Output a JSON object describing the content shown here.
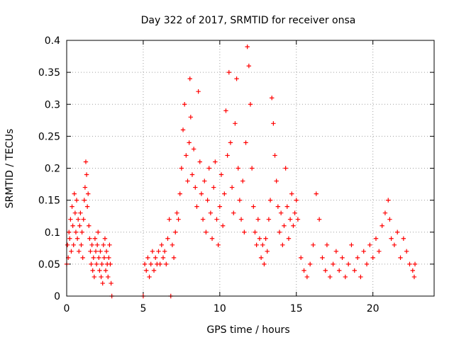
{
  "chart_data": {
    "type": "scatter",
    "title": "Day 322 of 2017, SRMTID for receiver onsa",
    "xlabel": "GPS time / hours",
    "ylabel": "SRMTID / TECUs",
    "xlim": [
      0,
      24
    ],
    "ylim": [
      0,
      0.4
    ],
    "xticks": [
      0,
      5,
      10,
      15,
      20
    ],
    "xtick_labels": [
      "0",
      "5",
      "10",
      "15",
      "20"
    ],
    "yticks": [
      0,
      0.05,
      0.1,
      0.15,
      0.2,
      0.25,
      0.3,
      0.35,
      0.4
    ],
    "ytick_labels": [
      "0",
      "0.05",
      "0.1",
      "0.15",
      "0.2",
      "0.25",
      "0.3",
      "0.35",
      "0.4"
    ],
    "grid": true,
    "marker": "+",
    "color": "#ff0000",
    "series": [
      {
        "name": "SRMTID",
        "points": [
          [
            0.0,
            0.05
          ],
          [
            0.05,
            0.08
          ],
          [
            0.1,
            0.06
          ],
          [
            0.15,
            0.1
          ],
          [
            0.2,
            0.09
          ],
          [
            0.25,
            0.12
          ],
          [
            0.3,
            0.07
          ],
          [
            0.35,
            0.14
          ],
          [
            0.4,
            0.11
          ],
          [
            0.45,
            0.08
          ],
          [
            0.5,
            0.16
          ],
          [
            0.55,
            0.13
          ],
          [
            0.6,
            0.1
          ],
          [
            0.65,
            0.15
          ],
          [
            0.7,
            0.09
          ],
          [
            0.75,
            0.12
          ],
          [
            0.8,
            0.07
          ],
          [
            0.85,
            0.11
          ],
          [
            0.9,
            0.13
          ],
          [
            0.95,
            0.08
          ],
          [
            1.0,
            0.1
          ],
          [
            1.05,
            0.06
          ],
          [
            1.1,
            0.12
          ],
          [
            1.15,
            0.15
          ],
          [
            1.2,
            0.17
          ],
          [
            1.25,
            0.21
          ],
          [
            1.3,
            0.19
          ],
          [
            1.35,
            0.14
          ],
          [
            1.4,
            0.16
          ],
          [
            1.45,
            0.11
          ],
          [
            1.5,
            0.09
          ],
          [
            1.55,
            0.07
          ],
          [
            1.6,
            0.05
          ],
          [
            1.65,
            0.08
          ],
          [
            1.7,
            0.04
          ],
          [
            1.75,
            0.06
          ],
          [
            1.8,
            0.03
          ],
          [
            1.85,
            0.09
          ],
          [
            1.9,
            0.07
          ],
          [
            1.95,
            0.05
          ],
          [
            2.0,
            0.08
          ],
          [
            2.05,
            0.1
          ],
          [
            2.1,
            0.06
          ],
          [
            2.15,
            0.04
          ],
          [
            2.2,
            0.07
          ],
          [
            2.25,
            0.03
          ],
          [
            2.3,
            0.05
          ],
          [
            2.35,
            0.02
          ],
          [
            2.4,
            0.08
          ],
          [
            2.45,
            0.06
          ],
          [
            2.5,
            0.09
          ],
          [
            2.55,
            0.04
          ],
          [
            2.6,
            0.07
          ],
          [
            2.65,
            0.05
          ],
          [
            2.7,
            0.03
          ],
          [
            2.75,
            0.06
          ],
          [
            2.8,
            0.08
          ],
          [
            2.85,
            0.05
          ],
          [
            2.9,
            0.02
          ],
          [
            2.95,
            0.0
          ],
          [
            5.0,
            0.0
          ],
          [
            5.1,
            0.05
          ],
          [
            5.2,
            0.04
          ],
          [
            5.3,
            0.06
          ],
          [
            5.4,
            0.03
          ],
          [
            5.5,
            0.05
          ],
          [
            5.6,
            0.07
          ],
          [
            5.7,
            0.04
          ],
          [
            5.8,
            0.06
          ],
          [
            5.9,
            0.05
          ],
          [
            6.0,
            0.07
          ],
          [
            6.1,
            0.05
          ],
          [
            6.2,
            0.08
          ],
          [
            6.3,
            0.06
          ],
          [
            6.4,
            0.07
          ],
          [
            6.5,
            0.05
          ],
          [
            6.6,
            0.09
          ],
          [
            6.7,
            0.12
          ],
          [
            6.8,
            0.0
          ],
          [
            6.9,
            0.08
          ],
          [
            7.0,
            0.06
          ],
          [
            7.1,
            0.1
          ],
          [
            7.2,
            0.13
          ],
          [
            7.3,
            0.12
          ],
          [
            7.4,
            0.16
          ],
          [
            7.5,
            0.2
          ],
          [
            7.6,
            0.26
          ],
          [
            7.7,
            0.3
          ],
          [
            7.8,
            0.22
          ],
          [
            7.9,
            0.18
          ],
          [
            8.0,
            0.24
          ],
          [
            8.05,
            0.34
          ],
          [
            8.1,
            0.28
          ],
          [
            8.2,
            0.19
          ],
          [
            8.3,
            0.23
          ],
          [
            8.4,
            0.17
          ],
          [
            8.5,
            0.14
          ],
          [
            8.6,
            0.32
          ],
          [
            8.7,
            0.21
          ],
          [
            8.8,
            0.16
          ],
          [
            8.9,
            0.12
          ],
          [
            9.0,
            0.18
          ],
          [
            9.1,
            0.1
          ],
          [
            9.2,
            0.15
          ],
          [
            9.3,
            0.2
          ],
          [
            9.4,
            0.13
          ],
          [
            9.5,
            0.09
          ],
          [
            9.6,
            0.17
          ],
          [
            9.7,
            0.21
          ],
          [
            9.8,
            0.12
          ],
          [
            9.9,
            0.08
          ],
          [
            10.0,
            0.14
          ],
          [
            10.1,
            0.19
          ],
          [
            10.2,
            0.11
          ],
          [
            10.3,
            0.16
          ],
          [
            10.4,
            0.29
          ],
          [
            10.5,
            0.22
          ],
          [
            10.6,
            0.35
          ],
          [
            10.7,
            0.24
          ],
          [
            10.8,
            0.17
          ],
          [
            10.9,
            0.13
          ],
          [
            11.0,
            0.27
          ],
          [
            11.1,
            0.34
          ],
          [
            11.2,
            0.2
          ],
          [
            11.3,
            0.15
          ],
          [
            11.4,
            0.12
          ],
          [
            11.5,
            0.18
          ],
          [
            11.6,
            0.1
          ],
          [
            11.7,
            0.24
          ],
          [
            11.8,
            0.39
          ],
          [
            11.9,
            0.36
          ],
          [
            12.0,
            0.3
          ],
          [
            12.1,
            0.2
          ],
          [
            12.2,
            0.14
          ],
          [
            12.3,
            0.1
          ],
          [
            12.4,
            0.08
          ],
          [
            12.5,
            0.12
          ],
          [
            12.6,
            0.09
          ],
          [
            12.7,
            0.06
          ],
          [
            12.8,
            0.08
          ],
          [
            12.9,
            0.05
          ],
          [
            13.0,
            0.09
          ],
          [
            13.1,
            0.07
          ],
          [
            13.2,
            0.12
          ],
          [
            13.3,
            0.15
          ],
          [
            13.4,
            0.31
          ],
          [
            13.5,
            0.27
          ],
          [
            13.6,
            0.22
          ],
          [
            13.7,
            0.18
          ],
          [
            13.8,
            0.14
          ],
          [
            13.9,
            0.1
          ],
          [
            14.0,
            0.13
          ],
          [
            14.1,
            0.08
          ],
          [
            14.2,
            0.11
          ],
          [
            14.3,
            0.2
          ],
          [
            14.4,
            0.14
          ],
          [
            14.5,
            0.09
          ],
          [
            14.6,
            0.12
          ],
          [
            14.7,
            0.16
          ],
          [
            14.8,
            0.11
          ],
          [
            14.9,
            0.13
          ],
          [
            15.0,
            0.15
          ],
          [
            15.1,
            0.12
          ],
          [
            15.3,
            0.06
          ],
          [
            15.5,
            0.04
          ],
          [
            15.7,
            0.03
          ],
          [
            15.9,
            0.05
          ],
          [
            16.1,
            0.08
          ],
          [
            16.3,
            0.16
          ],
          [
            16.5,
            0.12
          ],
          [
            16.7,
            0.06
          ],
          [
            16.9,
            0.04
          ],
          [
            17.0,
            0.08
          ],
          [
            17.2,
            0.03
          ],
          [
            17.4,
            0.05
          ],
          [
            17.6,
            0.07
          ],
          [
            17.8,
            0.04
          ],
          [
            18.0,
            0.06
          ],
          [
            18.2,
            0.03
          ],
          [
            18.4,
            0.05
          ],
          [
            18.6,
            0.08
          ],
          [
            18.8,
            0.04
          ],
          [
            19.0,
            0.06
          ],
          [
            19.2,
            0.03
          ],
          [
            19.4,
            0.07
          ],
          [
            19.6,
            0.05
          ],
          [
            19.8,
            0.08
          ],
          [
            20.0,
            0.06
          ],
          [
            20.2,
            0.09
          ],
          [
            20.4,
            0.07
          ],
          [
            20.6,
            0.11
          ],
          [
            20.8,
            0.13
          ],
          [
            21.0,
            0.15
          ],
          [
            21.1,
            0.12
          ],
          [
            21.2,
            0.09
          ],
          [
            21.4,
            0.08
          ],
          [
            21.6,
            0.1
          ],
          [
            21.8,
            0.06
          ],
          [
            22.0,
            0.09
          ],
          [
            22.2,
            0.07
          ],
          [
            22.4,
            0.05
          ],
          [
            22.6,
            0.04
          ],
          [
            22.7,
            0.03
          ],
          [
            22.75,
            0.05
          ]
        ]
      }
    ]
  }
}
